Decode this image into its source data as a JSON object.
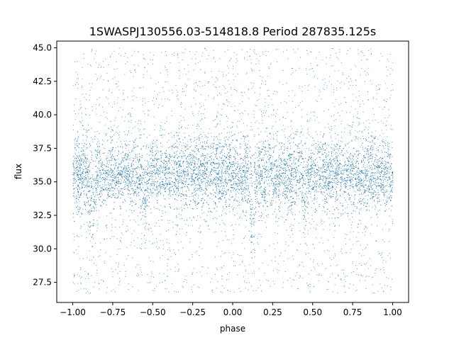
{
  "chart_data": {
    "type": "scatter",
    "title": "1SWASPJ130556.03-514818.8 Period 287835.125s",
    "xlabel": "phase",
    "ylabel": "flux",
    "xlim": [
      -1.1,
      1.1
    ],
    "ylim": [
      26.0,
      45.5
    ],
    "x_ticks": [
      -1.0,
      -0.75,
      -0.5,
      -0.25,
      0.0,
      0.25,
      0.5,
      0.75,
      1.0
    ],
    "x_tick_labels": [
      "−1.00",
      "−0.75",
      "−0.50",
      "−0.25",
      "0.00",
      "0.25",
      "0.50",
      "0.75",
      "1.00"
    ],
    "y_ticks": [
      27.5,
      30.0,
      32.5,
      35.0,
      37.5,
      40.0,
      42.5,
      45.0
    ],
    "y_tick_labels": [
      "27.5",
      "30.0",
      "32.5",
      "35.0",
      "37.5",
      "40.0",
      "42.5",
      "45.0"
    ],
    "grid": false,
    "legend": "none",
    "point_color": "#1f77b4",
    "x_range_of_data": [
      -1.0,
      1.0
    ],
    "baseline_flux": 35.5,
    "core_band": [
      33.5,
      37.5
    ],
    "eclipse_minima": [
      {
        "phase": -0.88,
        "flux_min": 29.5
      },
      {
        "phase": 0.12,
        "flux_min": 29.5
      }
    ],
    "secondary_dips": [
      {
        "phase": -0.55,
        "flux_min": 31.0
      },
      {
        "phase": 0.45,
        "flux_min": 31.0
      }
    ]
  }
}
